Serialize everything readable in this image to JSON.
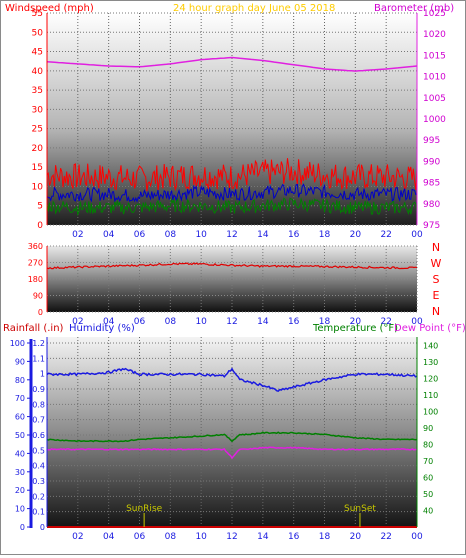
{
  "header": {
    "windspeed_label": "Windspeed (mph)",
    "graph_title": "24 hour graph day   June 05 2018",
    "barometer_label": "Barometer (mb)"
  },
  "colors": {
    "windspeed": "#ff0000",
    "gust": "#0000c8",
    "wind_avg": "#008000",
    "barometer": "#e020e0",
    "direction": "#e00000",
    "rainfall": "#cc0000",
    "humidity": "#1a1ae0",
    "temperature": "#008000",
    "dewpoint": "#e020e0",
    "title": "#ffcc00",
    "sun_markers": "#c8c800"
  },
  "labels": {
    "compass": [
      "N",
      "W",
      "S",
      "E",
      "N"
    ],
    "rainfall": "Rainfall (.in)",
    "humidity": "Humidity (%)",
    "temperature": "Temperature (°F)",
    "dewpoint": "Dew Point (°F)",
    "sunrise": "SunRise",
    "sunset": "SunSet"
  },
  "chart_data": [
    {
      "type": "line",
      "name": "wind-barometer",
      "x_ticks": [
        "02",
        "04",
        "06",
        "08",
        "10",
        "12",
        "14",
        "16",
        "18",
        "20",
        "22",
        "00"
      ],
      "ylim_left": [
        0,
        55
      ],
      "ylim_right": [
        975,
        1025
      ],
      "yticks_left": [
        "0",
        "5",
        "10",
        "15",
        "20",
        "25",
        "30",
        "35",
        "40",
        "45",
        "50",
        "55"
      ],
      "yticks_right": [
        "975",
        "980",
        "985",
        "990",
        "995",
        "1000",
        "1005",
        "1010",
        "1015",
        "1020",
        "1025"
      ],
      "x": [
        0,
        2,
        4,
        6,
        8,
        10,
        12,
        14,
        16,
        18,
        20,
        22,
        24
      ],
      "series": [
        {
          "axis": "right",
          "values": [
            1013.5,
            1013.0,
            1012.5,
            1012.3,
            1013.0,
            1014.0,
            1014.5,
            1013.8,
            1012.8,
            1011.8,
            1011.3,
            1011.8,
            1012.5
          ]
        },
        {
          "axis": "left",
          "values": [
            13,
            12.5,
            12.5,
            12,
            12.5,
            13,
            12.5,
            13.5,
            14,
            13,
            12.5,
            12.5,
            12
          ]
        },
        {
          "axis": "left",
          "values": [
            8,
            8,
            8,
            7.5,
            8,
            8.5,
            8,
            8.5,
            9,
            8.5,
            8,
            8,
            8
          ]
        },
        {
          "axis": "left",
          "values": [
            5,
            4.5,
            4.5,
            4.5,
            5,
            5,
            4.5,
            5,
            5.5,
            5,
            4.5,
            4.5,
            4.5
          ]
        }
      ]
    },
    {
      "type": "line",
      "name": "wind-direction",
      "x_ticks": [
        "02",
        "04",
        "06",
        "08",
        "10",
        "12",
        "14",
        "16",
        "18",
        "20",
        "22",
        "00"
      ],
      "ylim": [
        0,
        360
      ],
      "yticks": [
        "0",
        "90",
        "180",
        "270",
        "360"
      ],
      "x": [
        0,
        2,
        4,
        6,
        8,
        10,
        12,
        14,
        16,
        18,
        20,
        22,
        24
      ],
      "series": [
        {
          "values": [
            240,
            245,
            250,
            255,
            262,
            262,
            255,
            250,
            250,
            248,
            245,
            242,
            240
          ]
        }
      ]
    },
    {
      "type": "line",
      "name": "humidity-temperature",
      "x_ticks": [
        "02",
        "04",
        "06",
        "08",
        "10",
        "12",
        "14",
        "16",
        "18",
        "20",
        "22",
        "00"
      ],
      "ylim_rain": [
        0,
        1.2
      ],
      "ylim_humidity": [
        0,
        100
      ],
      "ylim_temp": [
        30,
        145
      ],
      "yticks_rain": [
        "0",
        "0.1",
        "0.2",
        "0.3",
        "0.4",
        "0.5",
        "0.6",
        "0.7",
        "0.8",
        "0.9",
        "1",
        "1.1",
        "1.2"
      ],
      "yticks_humidity": [
        "0",
        "10",
        "20",
        "30",
        "40",
        "50",
        "60",
        "70",
        "80",
        "90",
        "100"
      ],
      "yticks_temp": [
        "40",
        "50",
        "60",
        "70",
        "80",
        "90",
        "100",
        "110",
        "120",
        "130",
        "140"
      ],
      "x": [
        0,
        2,
        4,
        5,
        6,
        8,
        10,
        11.5,
        12,
        12.5,
        13,
        14,
        15,
        16,
        18,
        20,
        22,
        24
      ],
      "series": [
        {
          "axis": "rain",
          "values": [
            0,
            0,
            0,
            0,
            0,
            0,
            0,
            0,
            0,
            0,
            0,
            0,
            0,
            0,
            0,
            0,
            0,
            0
          ]
        },
        {
          "axis": "humidity",
          "values": [
            83,
            83,
            84,
            86,
            83,
            83,
            83,
            82,
            86,
            80,
            79,
            77,
            74,
            76,
            80,
            83,
            83,
            82
          ]
        },
        {
          "axis": "temp",
          "values": [
            83,
            82,
            82,
            82,
            83,
            84,
            85,
            86,
            82,
            86,
            86,
            87,
            87,
            87,
            86,
            84,
            83,
            83
          ]
        },
        {
          "axis": "temp",
          "values": [
            77,
            77,
            77,
            77,
            77,
            77,
            77,
            77,
            72,
            77,
            77,
            78,
            78,
            78,
            77,
            77,
            77,
            77
          ]
        }
      ],
      "annotations": [
        {
          "label": "SunRise",
          "x": 6.3
        },
        {
          "label": "SunSet",
          "x": 20.3
        }
      ]
    }
  ]
}
